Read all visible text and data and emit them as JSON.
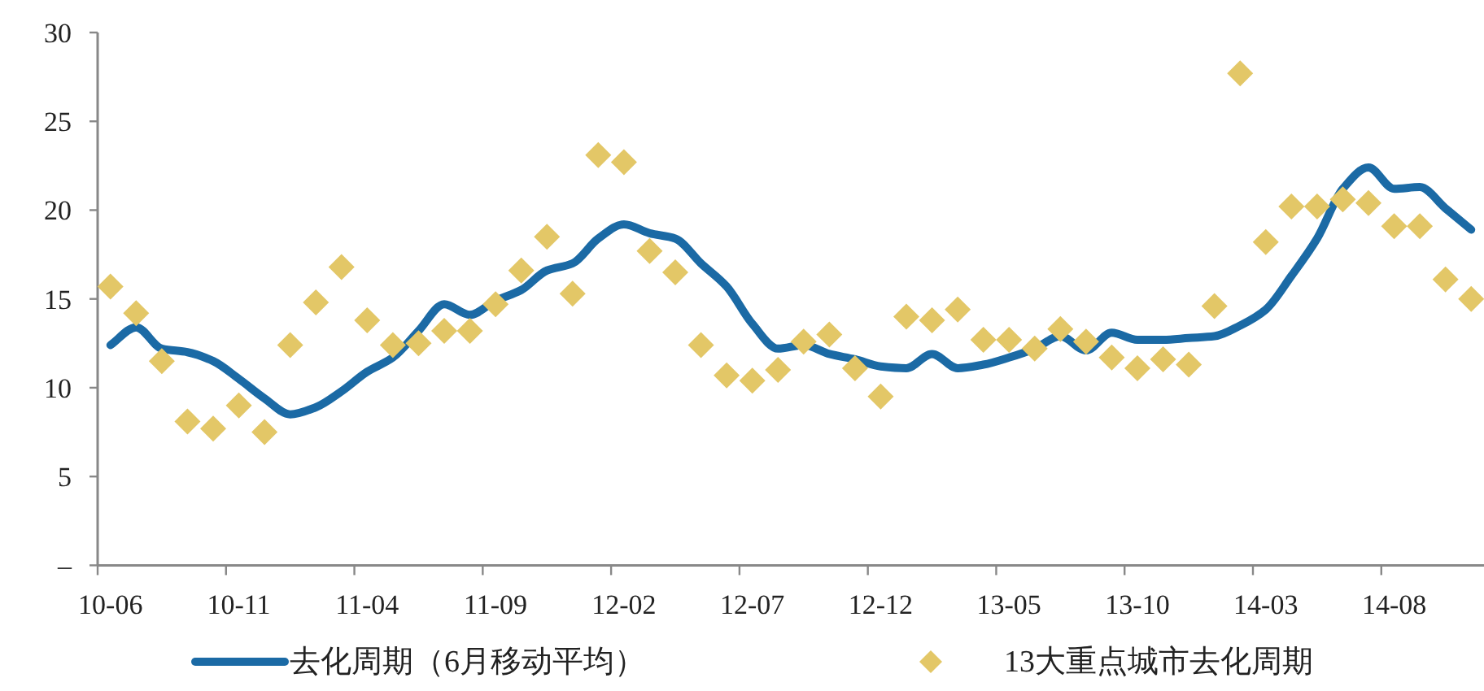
{
  "chart_data": {
    "type": "line",
    "categories": [
      "10-06",
      null,
      null,
      null,
      null,
      "10-11",
      null,
      null,
      null,
      null,
      "11-04",
      null,
      null,
      null,
      null,
      "11-09",
      null,
      null,
      null,
      null,
      "12-02",
      null,
      null,
      null,
      null,
      "12-07",
      null,
      null,
      null,
      null,
      "12-12",
      null,
      null,
      null,
      null,
      "13-05",
      null,
      null,
      null,
      null,
      "13-10",
      null,
      null,
      null,
      null,
      "14-03",
      null,
      null,
      null,
      null,
      "14-08",
      null,
      null,
      null
    ],
    "series": [
      {
        "name": "去化周期（6月移动平均）",
        "color": "#1b6aa5",
        "values": [
          12.4,
          13.4,
          12.2,
          12.0,
          11.5,
          10.5,
          9.4,
          8.5,
          8.9,
          9.8,
          10.9,
          11.7,
          13.2,
          14.7,
          14.1,
          14.9,
          15.5,
          16.6,
          17.0,
          18.4,
          19.2,
          18.7,
          18.4,
          17.0,
          15.7,
          13.6,
          12.2,
          12.4,
          11.9,
          11.6,
          11.2,
          11.1,
          11.9,
          11.1,
          11.3,
          11.7,
          12.2,
          12.9,
          12.1,
          13.1,
          12.7,
          12.7,
          12.8,
          12.9,
          13.5,
          14.4,
          16.3,
          18.4,
          21.2,
          22.4,
          21.2,
          21.3,
          20.1,
          18.9
        ]
      },
      {
        "name": "13大重点城市去化周期",
        "type": "scatter",
        "marker": "diamond",
        "color": "#e3c767",
        "values": [
          15.7,
          14.2,
          11.5,
          8.1,
          7.7,
          9.0,
          7.5,
          12.4,
          14.8,
          16.8,
          13.8,
          12.4,
          12.5,
          13.2,
          13.2,
          14.7,
          16.6,
          18.5,
          15.3,
          23.1,
          22.7,
          17.7,
          16.5,
          12.4,
          10.7,
          10.4,
          11.0,
          12.6,
          13.0,
          11.1,
          9.5,
          14.0,
          13.8,
          14.4,
          12.7,
          12.7,
          12.2,
          13.3,
          12.6,
          11.7,
          11.1,
          11.6,
          11.3,
          14.6,
          27.7,
          18.2,
          20.2,
          20.2,
          20.6,
          20.4,
          19.1,
          19.1,
          16.1,
          15.0
        ]
      }
    ],
    "ylim": [
      0,
      30
    ],
    "yticks": [
      {
        "value": 0,
        "label": "–"
      },
      5,
      10,
      15,
      20,
      25,
      30
    ],
    "grid": false,
    "legend": "bottom"
  }
}
